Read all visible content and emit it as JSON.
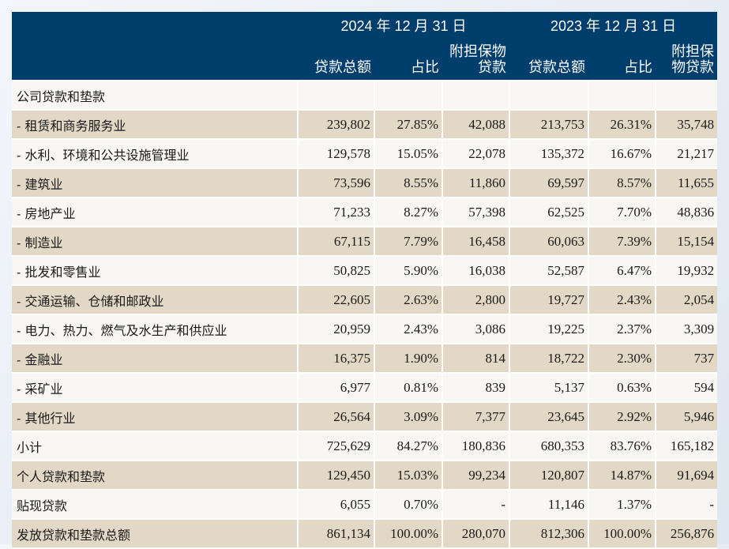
{
  "header": {
    "period_2024": "2024 年 12 月 31 日",
    "period_2023": "2023 年 12 月 31 日",
    "columns": [
      "贷款总额",
      "占比",
      "附担保物贷款",
      "贷款总额",
      "占比",
      "附担保物贷款"
    ]
  },
  "rows": [
    {
      "label": "公司贷款和垫款",
      "values": [
        "",
        "",
        "",
        "",
        "",
        ""
      ]
    },
    {
      "label": "- 租赁和商务服务业",
      "values": [
        "239,802",
        "27.85%",
        "42,088",
        "213,753",
        "26.31%",
        "35,748"
      ]
    },
    {
      "label": "- 水利、环境和公共设施管理业",
      "values": [
        "129,578",
        "15.05%",
        "22,078",
        "135,372",
        "16.67%",
        "21,217"
      ]
    },
    {
      "label": "- 建筑业",
      "values": [
        "73,596",
        "8.55%",
        "11,860",
        "69,597",
        "8.57%",
        "11,655"
      ]
    },
    {
      "label": "- 房地产业",
      "values": [
        "71,233",
        "8.27%",
        "57,398",
        "62,525",
        "7.70%",
        "48,836"
      ]
    },
    {
      "label": "- 制造业",
      "values": [
        "67,115",
        "7.79%",
        "16,458",
        "60,063",
        "7.39%",
        "15,154"
      ]
    },
    {
      "label": "- 批发和零售业",
      "values": [
        "50,825",
        "5.90%",
        "16,038",
        "52,587",
        "6.47%",
        "19,932"
      ]
    },
    {
      "label": "- 交通运输、仓储和邮政业",
      "values": [
        "22,605",
        "2.63%",
        "2,800",
        "19,727",
        "2.43%",
        "2,054"
      ]
    },
    {
      "label": "- 电力、热力、燃气及水生产和供应业",
      "values": [
        "20,959",
        "2.43%",
        "3,086",
        "19,225",
        "2.37%",
        "3,309"
      ]
    },
    {
      "label": "- 金融业",
      "values": [
        "16,375",
        "1.90%",
        "814",
        "18,722",
        "2.30%",
        "737"
      ]
    },
    {
      "label": "- 采矿业",
      "values": [
        "6,977",
        "0.81%",
        "839",
        "5,137",
        "0.63%",
        "594"
      ]
    },
    {
      "label": "- 其他行业",
      "values": [
        "26,564",
        "3.09%",
        "7,377",
        "23,645",
        "2.92%",
        "5,946"
      ]
    },
    {
      "label": "小计",
      "values": [
        "725,629",
        "84.27%",
        "180,836",
        "680,353",
        "83.76%",
        "165,182"
      ]
    },
    {
      "label": "个人贷款和垫款",
      "values": [
        "129,450",
        "15.03%",
        "99,234",
        "120,807",
        "14.87%",
        "91,694"
      ]
    },
    {
      "label": "贴现贷款",
      "values": [
        "6,055",
        "0.70%",
        "-",
        "11,146",
        "1.37%",
        "-"
      ]
    },
    {
      "label": "发放贷款和垫款总额",
      "values": [
        "861,134",
        "100.00%",
        "280,070",
        "812,306",
        "100.00%",
        "256,876"
      ]
    }
  ]
}
